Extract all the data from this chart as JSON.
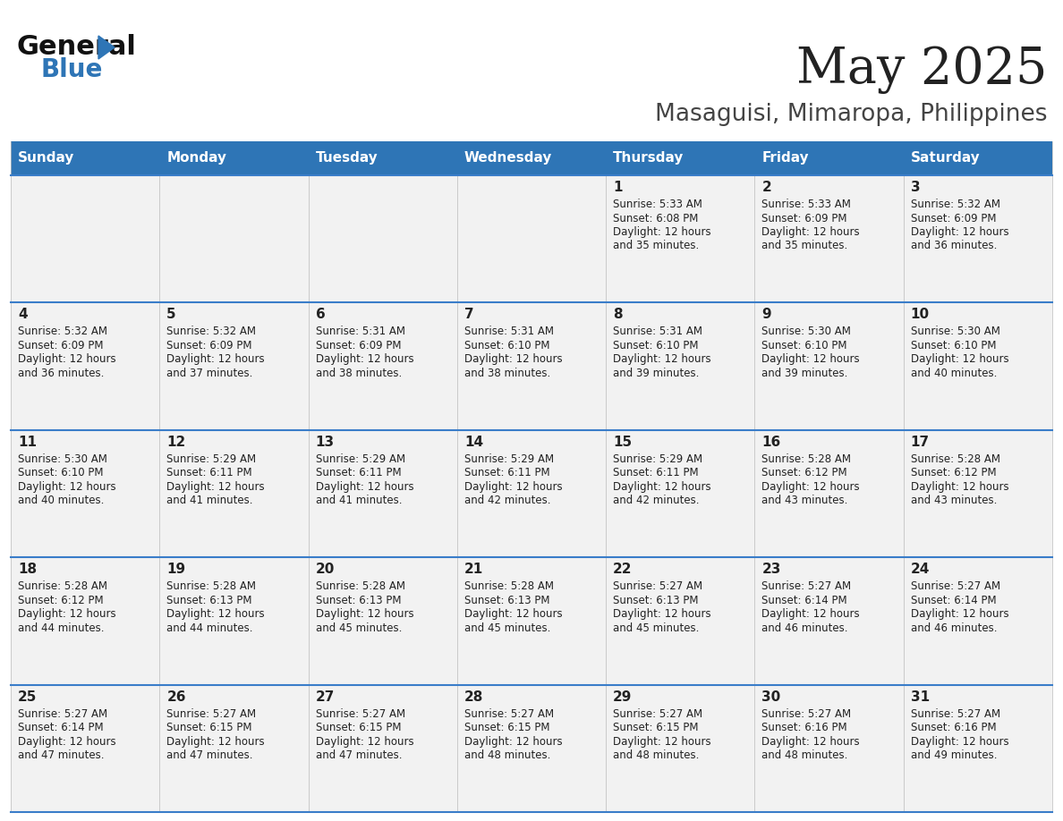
{
  "title": "May 2025",
  "subtitle": "Masaguisi, Mimaropa, Philippines",
  "days_of_week": [
    "Sunday",
    "Monday",
    "Tuesday",
    "Wednesday",
    "Thursday",
    "Friday",
    "Saturday"
  ],
  "header_bg": "#2E75B6",
  "header_text": "#FFFFFF",
  "cell_bg": "#F2F2F2",
  "cell_border_color": "#3A7DC9",
  "text_color": "#222222",
  "title_color": "#222222",
  "subtitle_color": "#444444",
  "logo_general_color": "#111111",
  "logo_blue_color": "#2E75B6",
  "logo_triangle_color": "#2E75B6",
  "calendar_data": [
    [
      {
        "day": "",
        "sunrise": "",
        "sunset": "",
        "daylight_hrs": "",
        "daylight_min": ""
      },
      {
        "day": "",
        "sunrise": "",
        "sunset": "",
        "daylight_hrs": "",
        "daylight_min": ""
      },
      {
        "day": "",
        "sunrise": "",
        "sunset": "",
        "daylight_hrs": "",
        "daylight_min": ""
      },
      {
        "day": "",
        "sunrise": "",
        "sunset": "",
        "daylight_hrs": "",
        "daylight_min": ""
      },
      {
        "day": "1",
        "sunrise": "5:33 AM",
        "sunset": "6:08 PM",
        "daylight_hrs": "12 hours",
        "daylight_min": "and 35 minutes."
      },
      {
        "day": "2",
        "sunrise": "5:33 AM",
        "sunset": "6:09 PM",
        "daylight_hrs": "12 hours",
        "daylight_min": "and 35 minutes."
      },
      {
        "day": "3",
        "sunrise": "5:32 AM",
        "sunset": "6:09 PM",
        "daylight_hrs": "12 hours",
        "daylight_min": "and 36 minutes."
      }
    ],
    [
      {
        "day": "4",
        "sunrise": "5:32 AM",
        "sunset": "6:09 PM",
        "daylight_hrs": "12 hours",
        "daylight_min": "and 36 minutes."
      },
      {
        "day": "5",
        "sunrise": "5:32 AM",
        "sunset": "6:09 PM",
        "daylight_hrs": "12 hours",
        "daylight_min": "and 37 minutes."
      },
      {
        "day": "6",
        "sunrise": "5:31 AM",
        "sunset": "6:09 PM",
        "daylight_hrs": "12 hours",
        "daylight_min": "and 38 minutes."
      },
      {
        "day": "7",
        "sunrise": "5:31 AM",
        "sunset": "6:10 PM",
        "daylight_hrs": "12 hours",
        "daylight_min": "and 38 minutes."
      },
      {
        "day": "8",
        "sunrise": "5:31 AM",
        "sunset": "6:10 PM",
        "daylight_hrs": "12 hours",
        "daylight_min": "and 39 minutes."
      },
      {
        "day": "9",
        "sunrise": "5:30 AM",
        "sunset": "6:10 PM",
        "daylight_hrs": "12 hours",
        "daylight_min": "and 39 minutes."
      },
      {
        "day": "10",
        "sunrise": "5:30 AM",
        "sunset": "6:10 PM",
        "daylight_hrs": "12 hours",
        "daylight_min": "and 40 minutes."
      }
    ],
    [
      {
        "day": "11",
        "sunrise": "5:30 AM",
        "sunset": "6:10 PM",
        "daylight_hrs": "12 hours",
        "daylight_min": "and 40 minutes."
      },
      {
        "day": "12",
        "sunrise": "5:29 AM",
        "sunset": "6:11 PM",
        "daylight_hrs": "12 hours",
        "daylight_min": "and 41 minutes."
      },
      {
        "day": "13",
        "sunrise": "5:29 AM",
        "sunset": "6:11 PM",
        "daylight_hrs": "12 hours",
        "daylight_min": "and 41 minutes."
      },
      {
        "day": "14",
        "sunrise": "5:29 AM",
        "sunset": "6:11 PM",
        "daylight_hrs": "12 hours",
        "daylight_min": "and 42 minutes."
      },
      {
        "day": "15",
        "sunrise": "5:29 AM",
        "sunset": "6:11 PM",
        "daylight_hrs": "12 hours",
        "daylight_min": "and 42 minutes."
      },
      {
        "day": "16",
        "sunrise": "5:28 AM",
        "sunset": "6:12 PM",
        "daylight_hrs": "12 hours",
        "daylight_min": "and 43 minutes."
      },
      {
        "day": "17",
        "sunrise": "5:28 AM",
        "sunset": "6:12 PM",
        "daylight_hrs": "12 hours",
        "daylight_min": "and 43 minutes."
      }
    ],
    [
      {
        "day": "18",
        "sunrise": "5:28 AM",
        "sunset": "6:12 PM",
        "daylight_hrs": "12 hours",
        "daylight_min": "and 44 minutes."
      },
      {
        "day": "19",
        "sunrise": "5:28 AM",
        "sunset": "6:13 PM",
        "daylight_hrs": "12 hours",
        "daylight_min": "and 44 minutes."
      },
      {
        "day": "20",
        "sunrise": "5:28 AM",
        "sunset": "6:13 PM",
        "daylight_hrs": "12 hours",
        "daylight_min": "and 45 minutes."
      },
      {
        "day": "21",
        "sunrise": "5:28 AM",
        "sunset": "6:13 PM",
        "daylight_hrs": "12 hours",
        "daylight_min": "and 45 minutes."
      },
      {
        "day": "22",
        "sunrise": "5:27 AM",
        "sunset": "6:13 PM",
        "daylight_hrs": "12 hours",
        "daylight_min": "and 45 minutes."
      },
      {
        "day": "23",
        "sunrise": "5:27 AM",
        "sunset": "6:14 PM",
        "daylight_hrs": "12 hours",
        "daylight_min": "and 46 minutes."
      },
      {
        "day": "24",
        "sunrise": "5:27 AM",
        "sunset": "6:14 PM",
        "daylight_hrs": "12 hours",
        "daylight_min": "and 46 minutes."
      }
    ],
    [
      {
        "day": "25",
        "sunrise": "5:27 AM",
        "sunset": "6:14 PM",
        "daylight_hrs": "12 hours",
        "daylight_min": "and 47 minutes."
      },
      {
        "day": "26",
        "sunrise": "5:27 AM",
        "sunset": "6:15 PM",
        "daylight_hrs": "12 hours",
        "daylight_min": "and 47 minutes."
      },
      {
        "day": "27",
        "sunrise": "5:27 AM",
        "sunset": "6:15 PM",
        "daylight_hrs": "12 hours",
        "daylight_min": "and 47 minutes."
      },
      {
        "day": "28",
        "sunrise": "5:27 AM",
        "sunset": "6:15 PM",
        "daylight_hrs": "12 hours",
        "daylight_min": "and 48 minutes."
      },
      {
        "day": "29",
        "sunrise": "5:27 AM",
        "sunset": "6:15 PM",
        "daylight_hrs": "12 hours",
        "daylight_min": "and 48 minutes."
      },
      {
        "day": "30",
        "sunrise": "5:27 AM",
        "sunset": "6:16 PM",
        "daylight_hrs": "12 hours",
        "daylight_min": "and 48 minutes."
      },
      {
        "day": "31",
        "sunrise": "5:27 AM",
        "sunset": "6:16 PM",
        "daylight_hrs": "12 hours",
        "daylight_min": "and 49 minutes."
      }
    ]
  ]
}
